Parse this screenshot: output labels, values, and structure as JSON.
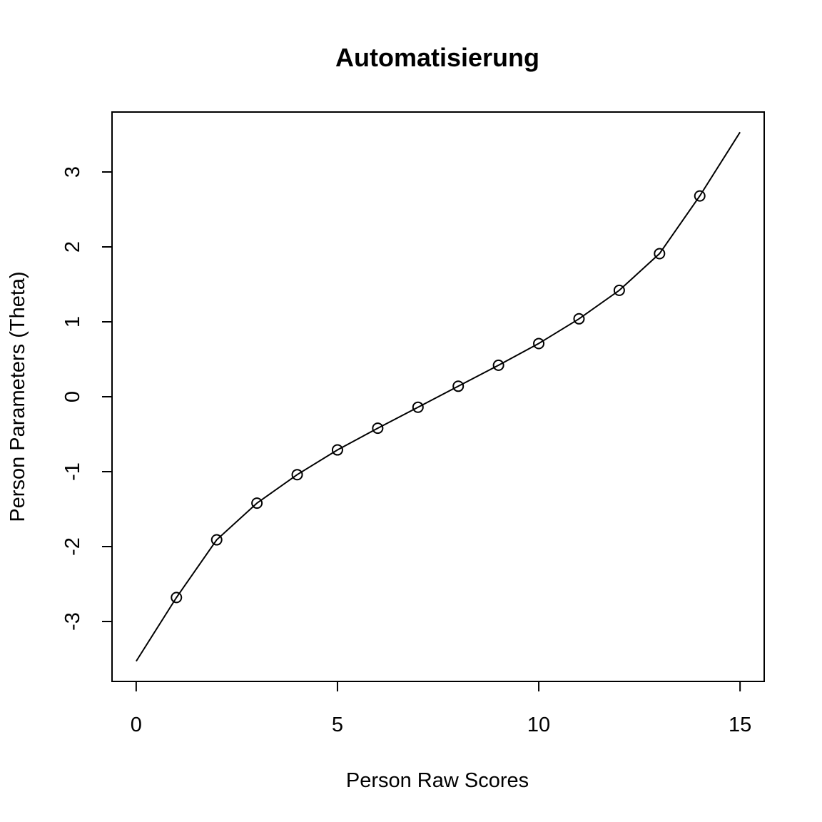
{
  "chart_data": {
    "type": "line",
    "title": "Automatisierung",
    "xlabel": "Person Raw Scores",
    "ylabel": "Person Parameters (Theta)",
    "xlim": [
      -0.6,
      15.6
    ],
    "ylim": [
      -3.8,
      3.8
    ],
    "xticks": [
      0,
      5,
      10,
      15
    ],
    "yticks": [
      -3,
      -2,
      -1,
      0,
      1,
      2,
      3
    ],
    "grid": false,
    "series": [
      {
        "kind": "line",
        "x": [
          0,
          1,
          2,
          3,
          4,
          5,
          6,
          7,
          8,
          9,
          10,
          11,
          12,
          13,
          14,
          15
        ],
        "y": [
          -3.53,
          -2.68,
          -1.91,
          -1.42,
          -1.04,
          -0.71,
          -0.42,
          -0.14,
          0.14,
          0.42,
          0.71,
          1.04,
          1.42,
          1.91,
          2.68,
          3.53
        ]
      },
      {
        "kind": "points",
        "marker": "open-circle",
        "x": [
          1,
          2,
          3,
          4,
          5,
          6,
          7,
          8,
          9,
          10,
          11,
          12,
          13,
          14
        ],
        "y": [
          -2.68,
          -1.91,
          -1.42,
          -1.04,
          -0.71,
          -0.42,
          -0.14,
          0.14,
          0.42,
          0.71,
          1.04,
          1.42,
          1.91,
          2.68
        ]
      }
    ]
  }
}
